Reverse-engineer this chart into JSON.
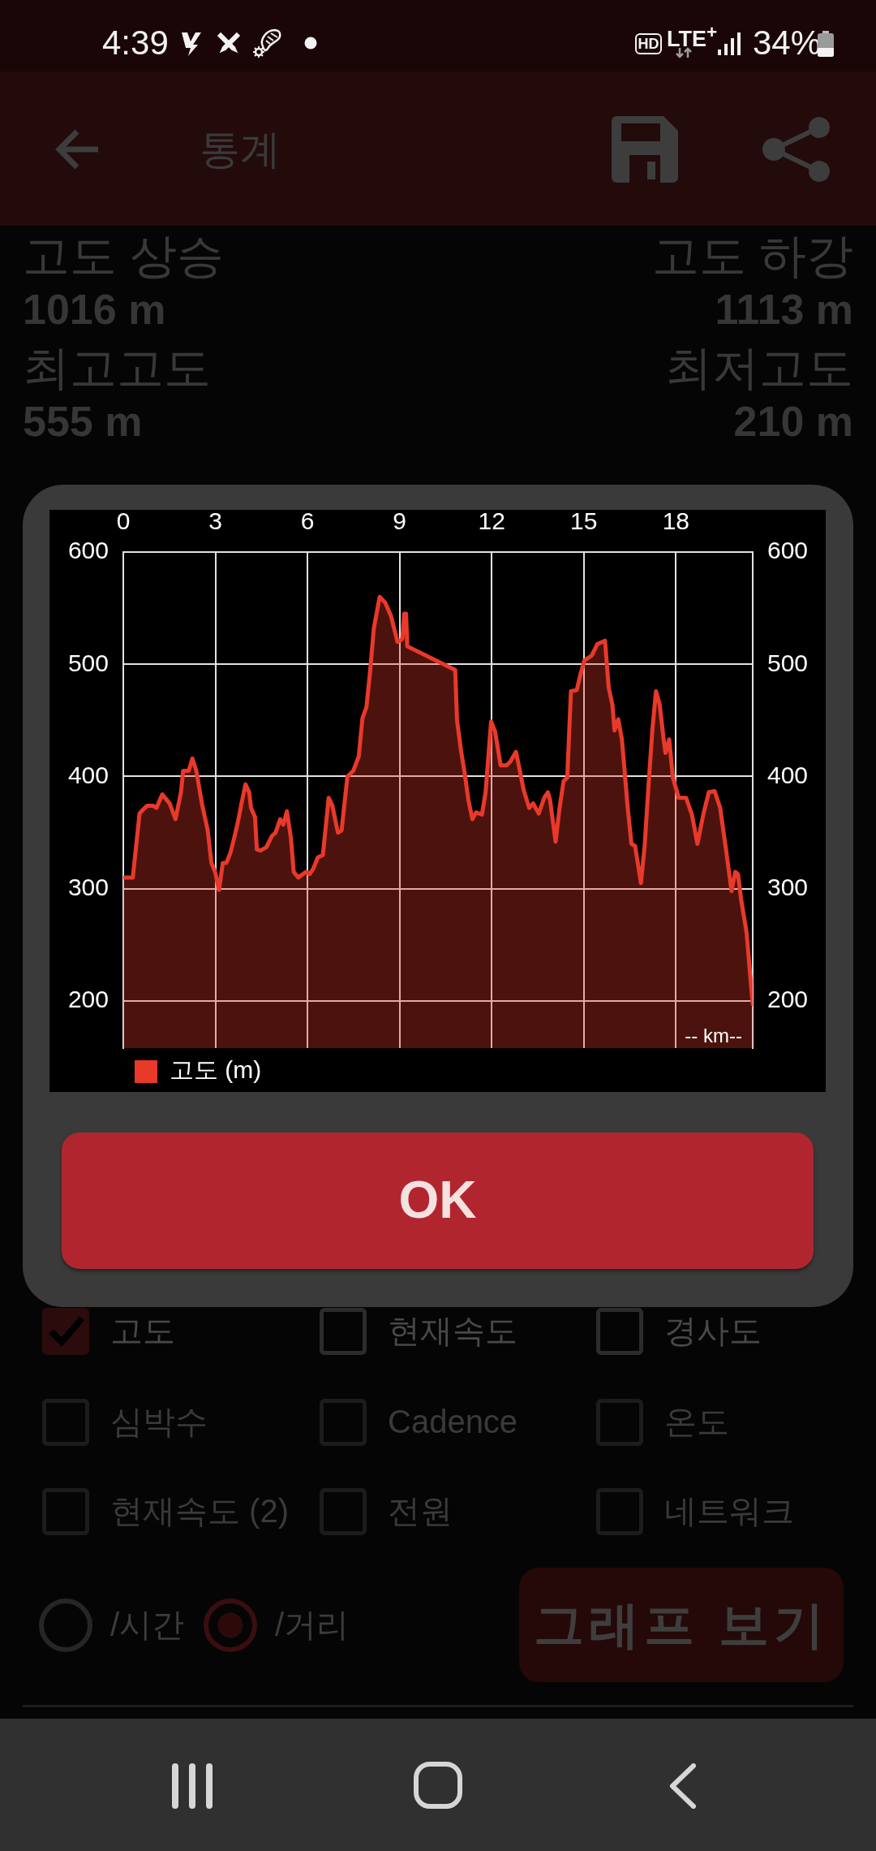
{
  "chart_data": {
    "type": "area",
    "x": [
      0,
      0.31,
      0.53,
      0.59,
      0.78,
      0.96,
      1.08,
      1.27,
      1.51,
      1.7,
      1.88,
      1.95,
      2.13,
      2.25,
      2.38,
      2.56,
      2.75,
      2.87,
      2.99,
      3.12,
      3.24,
      3.36,
      3.49,
      3.61,
      3.73,
      3.85,
      3.98,
      4.1,
      4.16,
      4.29,
      4.35,
      4.47,
      4.66,
      4.84,
      4.96,
      5.11,
      5.21,
      5.33,
      5.46,
      5.55,
      5.7,
      5.95,
      6.07,
      6.19,
      6.34,
      6.5,
      6.69,
      6.81,
      6.99,
      7.11,
      7.3,
      7.49,
      7.67,
      7.79,
      7.92,
      8.04,
      8.16,
      8.35,
      8.53,
      8.72,
      8.93,
      9.02,
      9.09,
      9.15,
      9.21,
      9.25,
      10.81,
      10.87,
      11,
      11.12,
      11.24,
      11.37,
      11.49,
      11.68,
      11.8,
      11.98,
      12.11,
      12.29,
      12.48,
      12.6,
      12.79,
      12.91,
      13.04,
      13.22,
      13.35,
      13.53,
      13.71,
      13.83,
      13.9,
      14.08,
      14.21,
      14.34,
      14.46,
      14.58,
      14.77,
      14.89,
      15.01,
      15.26,
      15.44,
      15.69,
      15.81,
      15.93,
      16,
      16.12,
      16.24,
      16.43,
      16.55,
      16.67,
      16.86,
      16.98,
      17.1,
      17.23,
      17.35,
      17.47,
      17.6,
      17.66,
      17.78,
      17.9,
      18.09,
      18.33,
      18.52,
      18.7,
      18.89,
      19.07,
      19.26,
      19.44,
      19.63,
      19.81,
      19.93,
      20.02,
      20.12,
      20.3,
      20.5
    ],
    "series": [
      {
        "name": "고도 (m)",
        "color": "#e8392a",
        "values": [
          310,
          310,
          367,
          369,
          374,
          374,
          372,
          384,
          376,
          362,
          386,
          405,
          405,
          416,
          405,
          376,
          352,
          323,
          315,
          299,
          323,
          323,
          332,
          345,
          359,
          376,
          393,
          386,
          372,
          364,
          335,
          334,
          337,
          347,
          350,
          362,
          357,
          369,
          345,
          315,
          310,
          315,
          313,
          318,
          328,
          330,
          381,
          374,
          350,
          352,
          400,
          405,
          418,
          452,
          462,
          494,
          532,
          560,
          555,
          543,
          520,
          521,
          523,
          545,
          545,
          516,
          495,
          450,
          423,
          403,
          379,
          362,
          368,
          366,
          386,
          449,
          440,
          410,
          410,
          413,
          422,
          406,
          388,
          372,
          376,
          367,
          381,
          386,
          379,
          342,
          372,
          396,
          399,
          476,
          477,
          491,
          503,
          508,
          518,
          521,
          479,
          464,
          441,
          451,
          433,
          372,
          340,
          338,
          305,
          338,
          389,
          441,
          476,
          464,
          433,
          421,
          433,
          399,
          381,
          381,
          366,
          340,
          366,
          386,
          387,
          372,
          335,
          298,
          315,
          313,
          291,
          261,
          197
        ]
      }
    ],
    "xlim": [
      0,
      20.5
    ],
    "xticks": [
      0,
      3,
      6,
      9,
      12,
      15,
      18
    ],
    "ylim": [
      158,
      600
    ],
    "yticks": [
      200,
      300,
      400,
      500,
      600
    ],
    "y2lim": [
      158,
      600
    ],
    "y2ticks": [
      200,
      300,
      400,
      500,
      600
    ],
    "xlabel": "-- km--",
    "grid": true,
    "legend": "bottom left",
    "annotations": [
      "4:39",
      "HD",
      "LTE$^{+}$",
      "34%",
      "통계",
      "고도 상승",
      "1016 m",
      "고도 하강",
      "1113 m",
      "최고고도",
      "555 m",
      "최저고도",
      "210 m",
      "OK",
      "고도",
      "현재속도",
      "경사도",
      "심박수",
      "Cadence",
      "온도",
      "현재속도 (2)",
      "전원",
      "네트워크",
      "/시간",
      "/거리",
      "그래프 보기"
    ]
  }
}
